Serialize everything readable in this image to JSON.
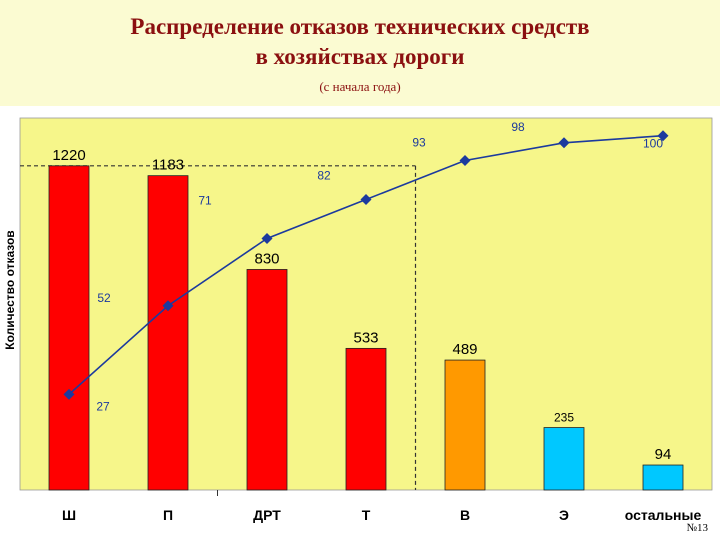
{
  "header": {
    "title_line1": "Распределение отказов технических средств",
    "title_line2": "в хозяйствах дороги",
    "subtitle": "(с начала года)"
  },
  "slide_number": "№13",
  "colors": {
    "header_bg": "#fbfbd2",
    "plot_bg": "#f6f68a",
    "title": "#8b1010",
    "bar_red": "#ff0000",
    "bar_orange": "#ff9900",
    "bar_cyan": "#00c8ff",
    "cumulative_line": "#1c3a9e"
  },
  "chart_data": {
    "type": "bar",
    "title": "Распределение отказов технических средств в хозяйствах дороги",
    "subtitle": "(с начала года)",
    "xlabel": "",
    "ylabel": "Количество отказов",
    "categories": [
      "Ш",
      "П",
      "ДРТ",
      "Т",
      "В",
      "Э",
      "остальные"
    ],
    "series": [
      {
        "kind": "bar",
        "values": [
          1220,
          1183,
          830,
          533,
          489,
          235,
          94
        ],
        "labels": [
          "1220",
          "1183",
          "830",
          "533",
          "489",
          "235",
          "94"
        ],
        "colors": [
          "#ff0000",
          "#ff0000",
          "#ff0000",
          "#ff0000",
          "#ff9900",
          "#00c8ff",
          "#00c8ff"
        ]
      },
      {
        "kind": "line",
        "values": [
          27,
          52,
          71,
          82,
          93,
          98,
          100
        ],
        "labels": [
          "27",
          "52",
          "71",
          "82",
          "93",
          "98",
          "100"
        ],
        "color": "#1c3a9e"
      }
    ],
    "ylim": [
      0,
      1400
    ],
    "y2lim": [
      0,
      105
    ],
    "grid": false,
    "legend": "none",
    "reference_lines": [
      {
        "kind": "horizontal",
        "at": 1220,
        "style": "dashed"
      },
      {
        "kind": "vertical",
        "after_category": "Т",
        "style": "dashed"
      }
    ]
  }
}
